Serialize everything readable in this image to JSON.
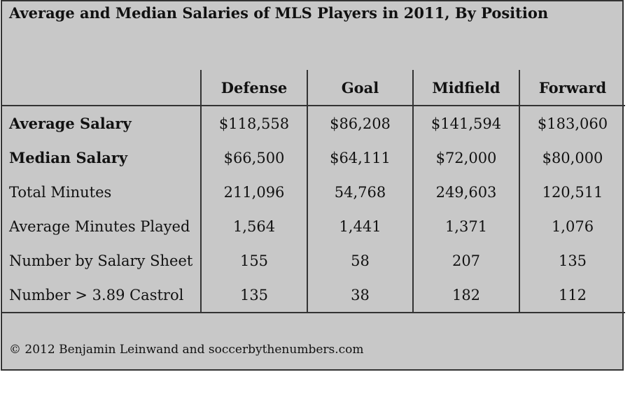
{
  "chart_data": {
    "type": "table",
    "title": "Average and Median Salaries of MLS Players in 2011, By Position",
    "columns": [
      "Defense",
      "Goal",
      "Midfield",
      "Forward"
    ],
    "rows": [
      {
        "label": "Average Salary",
        "bold": true,
        "values": [
          "$118,558",
          "$86,208",
          "$141,594",
          "$183,060"
        ]
      },
      {
        "label": "Median Salary",
        "bold": true,
        "values": [
          "$66,500",
          "$64,111",
          "$72,000",
          "$80,000"
        ]
      },
      {
        "label": "Total Minutes",
        "bold": false,
        "values": [
          "211,096",
          "54,768",
          "249,603",
          "120,511"
        ]
      },
      {
        "label": "Average Minutes Played",
        "bold": false,
        "values": [
          "1,564",
          "1,441",
          "1,371",
          "1,076"
        ]
      },
      {
        "label": "Number by Salary Sheet",
        "bold": false,
        "values": [
          "155",
          "58",
          "207",
          "135"
        ]
      },
      {
        "label": "Number > 3.89 Castrol",
        "bold": false,
        "values": [
          "135",
          "38",
          "182",
          "112"
        ]
      }
    ],
    "footer": "© 2012 Benjamin Leinwand and soccerbythenumbers.com"
  }
}
